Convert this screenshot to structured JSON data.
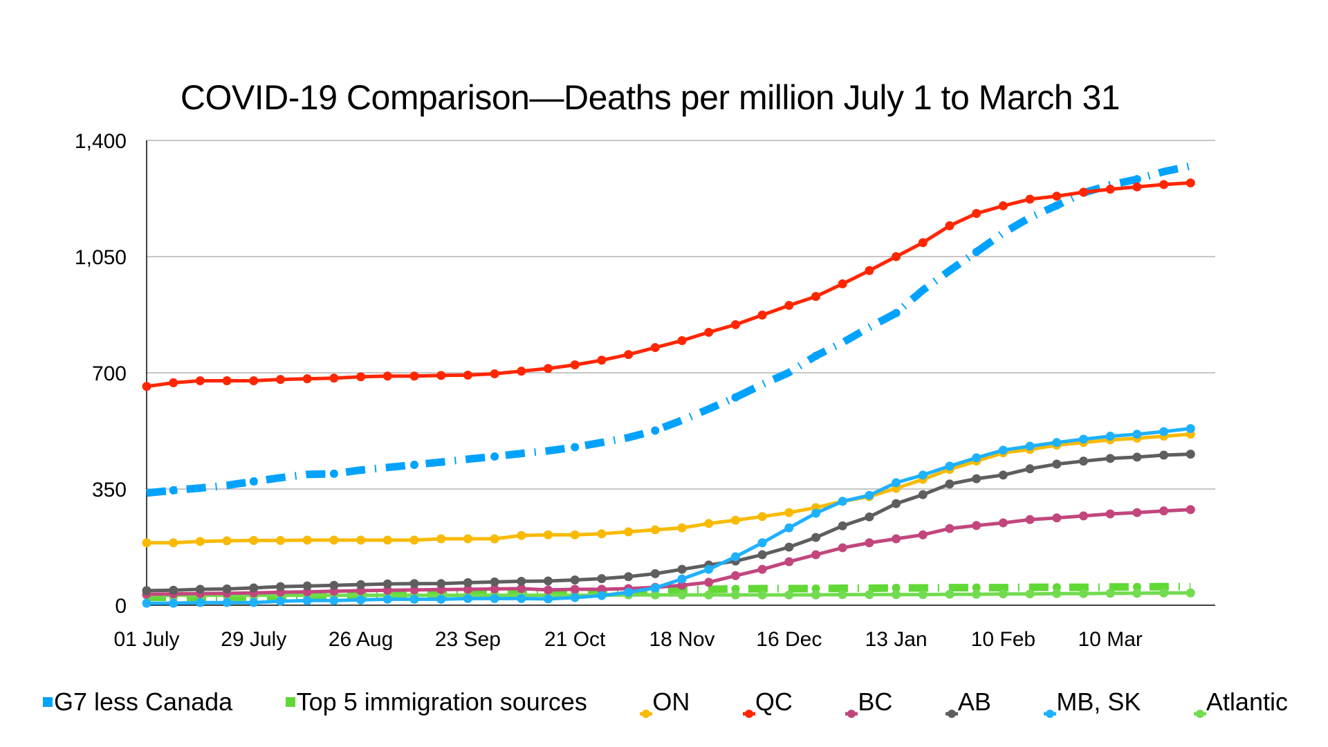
{
  "chart_data": {
    "type": "line",
    "title": "COVID-19 Comparison—Deaths per million July 1 to March 31",
    "xlabel": "",
    "ylabel": "",
    "ylim": [
      0,
      1400
    ],
    "yticks": [
      "0",
      "350",
      "700",
      "1,050",
      "1,400"
    ],
    "ytick_values": [
      0,
      350,
      700,
      1050,
      1400
    ],
    "grid": true,
    "legend_position": "bottom",
    "x_interval": "weekly",
    "x_tick_labels": [
      "01 July",
      "29 July",
      "26 Aug",
      "23 Sep",
      "21 Oct",
      "18 Nov",
      "16 Dec",
      "13 Jan",
      "10 Feb",
      "10 Mar"
    ],
    "x_tick_every_n_points": 4,
    "num_points": 40,
    "series": [
      {
        "name": "G7 less Canada",
        "color": "#00A2FF",
        "style": "dash-dot",
        "values": [
          338,
          346,
          353,
          361,
          373,
          384,
          394,
          396,
          407,
          415,
          423,
          431,
          440,
          448,
          457,
          465,
          476,
          490,
          505,
          526,
          557,
          591,
          626,
          665,
          701,
          751,
          791,
          837,
          880,
          949,
          1008,
          1064,
          1121,
          1168,
          1204,
          1242,
          1266,
          1283,
          1306,
          1323
        ]
      },
      {
        "name": "Top 5 immigration sources",
        "color": "#61D836",
        "style": "dash-dot",
        "values": [
          24,
          24,
          24,
          24,
          25,
          26,
          27,
          28,
          29,
          30,
          31,
          32,
          33,
          34,
          35,
          36,
          38,
          40,
          42,
          45,
          47,
          48,
          49,
          50,
          50,
          50,
          51,
          51,
          52,
          52,
          53,
          53,
          53,
          54,
          54,
          54,
          55,
          55,
          56,
          56
        ]
      },
      {
        "name": "ON",
        "color": "#F8BA00",
        "style": "solid-marker",
        "values": [
          188,
          188,
          192,
          194,
          195,
          195,
          196,
          196,
          196,
          196,
          196,
          200,
          200,
          200,
          210,
          212,
          212,
          215,
          221,
          227,
          233,
          246,
          256,
          267,
          279,
          294,
          313,
          327,
          352,
          379,
          409,
          434,
          459,
          469,
          482,
          490,
          498,
          503,
          509,
          515
        ]
      },
      {
        "name": "QC",
        "color": "#FF2600",
        "style": "solid-marker",
        "values": [
          659,
          670,
          676,
          676,
          676,
          680,
          682,
          684,
          688,
          690,
          690,
          692,
          693,
          697,
          705,
          713,
          724,
          738,
          755,
          776,
          797,
          822,
          845,
          874,
          903,
          930,
          968,
          1008,
          1050,
          1092,
          1143,
          1180,
          1203,
          1223,
          1232,
          1244,
          1253,
          1260,
          1267,
          1272
        ]
      },
      {
        "name": "BC",
        "color": "#C2467E",
        "style": "solid-marker",
        "values": [
          33,
          34,
          35,
          36,
          37,
          39,
          40,
          42,
          44,
          45,
          46,
          47,
          48,
          49,
          50,
          46,
          48,
          48,
          50,
          54,
          60,
          69,
          89,
          108,
          131,
          152,
          173,
          188,
          200,
          212,
          231,
          240,
          248,
          258,
          263,
          269,
          275,
          279,
          284,
          288
        ]
      },
      {
        "name": "AB",
        "color": "#5E5E5E",
        "style": "solid-marker",
        "values": [
          44,
          45,
          48,
          49,
          52,
          56,
          58,
          60,
          62,
          64,
          65,
          65,
          68,
          70,
          72,
          73,
          76,
          80,
          86,
          95,
          108,
          121,
          133,
          152,
          175,
          204,
          239,
          266,
          306,
          333,
          365,
          381,
          392,
          411,
          425,
          434,
          442,
          446,
          452,
          455
        ]
      },
      {
        "name": "MB, SK",
        "color": "#1EB1FF",
        "style": "solid-marker",
        "values": [
          6,
          6,
          8,
          8,
          8,
          12,
          14,
          14,
          16,
          18,
          18,
          18,
          20,
          20,
          20,
          19,
          23,
          29,
          39,
          52,
          79,
          108,
          146,
          188,
          233,
          277,
          313,
          331,
          369,
          392,
          419,
          444,
          467,
          479,
          490,
          500,
          509,
          515,
          523,
          532
        ]
      },
      {
        "name": "Atlantic",
        "color": "#72DB50",
        "style": "solid-marker",
        "values": [
          30,
          30,
          30,
          30,
          30,
          30,
          30,
          30,
          30,
          30,
          30,
          30,
          30,
          30,
          30,
          30,
          30,
          30,
          31,
          31,
          31,
          31,
          31,
          31,
          31,
          31,
          32,
          32,
          32,
          32,
          33,
          33,
          34,
          34,
          35,
          35,
          36,
          36,
          37,
          37
        ]
      }
    ]
  }
}
